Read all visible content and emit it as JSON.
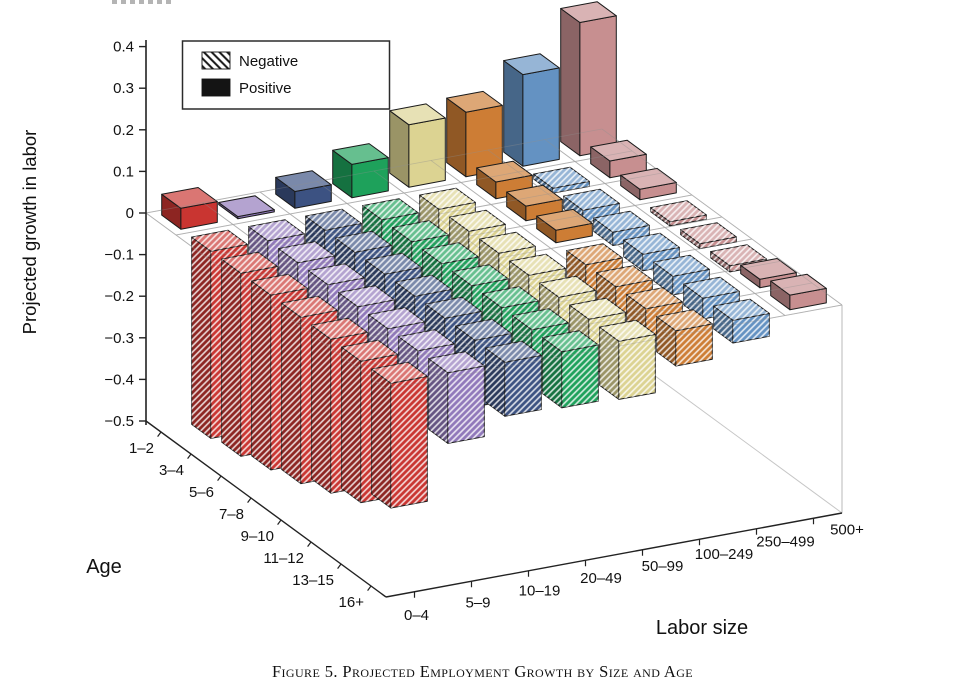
{
  "figure": {
    "caption": "Figure 5. Projected Employment Growth by Size and Age"
  },
  "chart_data": {
    "type": "bar",
    "subtype": "3d-grouped-bars",
    "title": "",
    "ylabel": "Projected growth in labor",
    "xlabel": "Labor size",
    "depth_label": "Age",
    "ylim": [
      -0.5,
      0.45
    ],
    "grid": true,
    "legend_position": "top-left",
    "legend": [
      {
        "label": "Negative",
        "style": "hatched"
      },
      {
        "label": "Positive",
        "style": "solid"
      }
    ],
    "yticks": [
      0.4,
      0.3,
      0.2,
      0.1,
      0,
      -0.1,
      -0.2,
      -0.3,
      -0.4,
      -0.5
    ],
    "ytick_labels": [
      "0.4",
      "0.3",
      "0.2",
      "0.1",
      "0",
      "−0.1",
      "−0.2",
      "−0.3",
      "−0.4",
      "−0.5"
    ],
    "age_categories": [
      "1–2",
      "3–4",
      "5–6",
      "7–8",
      "9–10",
      "11–12",
      "13–15",
      "16+"
    ],
    "size_categories": [
      "0–4",
      "5–9",
      "10–19",
      "20–49",
      "50–99",
      "100–249",
      "250–499",
      "500+"
    ],
    "values_note": "projected growth by labor-size series, one value per age category",
    "series": [
      {
        "name": "0–4",
        "color": "#c93531",
        "values": [
          0.05,
          -0.45,
          -0.44,
          -0.42,
          -0.4,
          -0.37,
          -0.34,
          -0.3
        ]
      },
      {
        "name": "5–9",
        "color": "#9078ba",
        "values": [
          0.005,
          -0.33,
          -0.3,
          -0.28,
          -0.25,
          -0.22,
          -0.19,
          -0.17
        ]
      },
      {
        "name": "10–19",
        "color": "#3c5282",
        "values": [
          0.04,
          -0.27,
          -0.25,
          -0.23,
          -0.2,
          -0.18,
          -0.16,
          -0.13
        ]
      },
      {
        "name": "20–49",
        "color": "#1ea15b",
        "values": [
          0.08,
          -0.21,
          -0.19,
          -0.18,
          -0.16,
          -0.15,
          -0.15,
          -0.135
        ]
      },
      {
        "name": "50–99",
        "color": "#dcd392",
        "values": [
          0.15,
          -0.18,
          -0.17,
          -0.16,
          -0.145,
          -0.13,
          -0.13,
          -0.14
        ]
      },
      {
        "name": "100–249",
        "color": "#cd7d35",
        "values": [
          0.155,
          0.04,
          0.035,
          0.03,
          -0.07,
          -0.075,
          -0.08,
          -0.085
        ]
      },
      {
        "name": "250–499",
        "color": "#6492c2",
        "values": [
          0.22,
          -0.012,
          -0.03,
          -0.032,
          -0.04,
          -0.045,
          -0.05,
          -0.055
        ]
      },
      {
        "name": "500+",
        "color": "#c78f90",
        "values": [
          0.32,
          0.04,
          0.025,
          -0.01,
          -0.012,
          -0.015,
          0.02,
          0.035
        ]
      }
    ]
  }
}
